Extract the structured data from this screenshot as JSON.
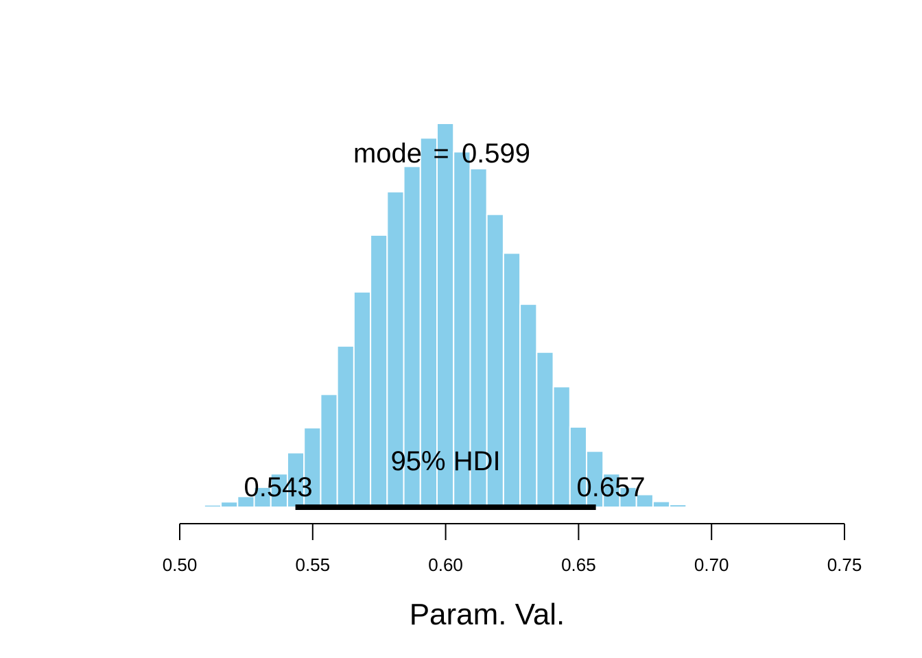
{
  "chart_data": {
    "type": "bar",
    "xlabel": "Param. Val.",
    "xlim": [
      0.5,
      0.75
    ],
    "xticks": [
      "0.50",
      "0.55",
      "0.60",
      "0.65",
      "0.70",
      "0.75"
    ],
    "bar_color": "#87ceeb",
    "bin_width": 0.00625,
    "bins_start": 0.503,
    "values": [
      0.003,
      0.006,
      0.014,
      0.028,
      0.052,
      0.087,
      0.142,
      0.207,
      0.294,
      0.42,
      0.561,
      0.709,
      0.822,
      0.888,
      0.962,
      1.0,
      0.926,
      0.882,
      0.763,
      0.662,
      0.529,
      0.404,
      0.314,
      0.209,
      0.146,
      0.087,
      0.052,
      0.033,
      0.015,
      0.007,
      0.003
    ],
    "mode": {
      "label": "mode",
      "value": "0.599"
    },
    "hdi": {
      "label": "95% HDI",
      "low": 0.5435,
      "high": 0.6565,
      "low_label": "0.543",
      "high_label": "0.657"
    }
  }
}
